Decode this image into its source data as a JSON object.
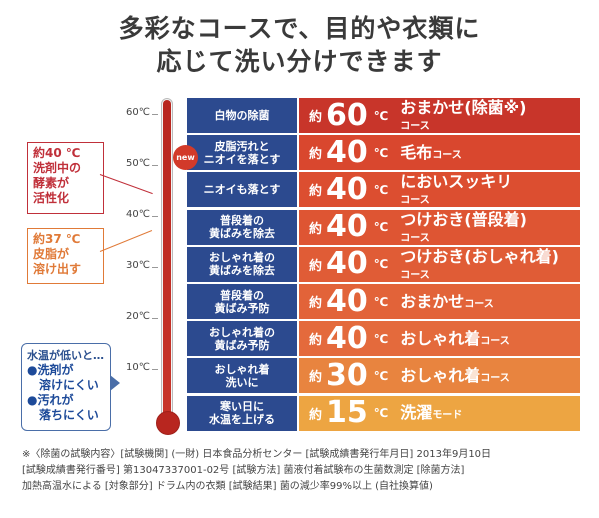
{
  "header": {
    "title_line1": "多彩なコースで、目的や衣類に",
    "title_line2": "応じて洗い分けできます"
  },
  "scale": {
    "ticks": [
      "60℃",
      "50℃",
      "40℃",
      "30℃",
      "20℃",
      "10℃"
    ]
  },
  "notes": {
    "enzyme": [
      "約40 ℃",
      "洗剤中の",
      "酵素が",
      "活性化"
    ],
    "sebum": [
      "約37 ℃",
      "皮脂が",
      "溶け出す"
    ],
    "low": {
      "heading": "水温が低いと…",
      "bullet1_a": "●洗剤が",
      "bullet1_b": "溶けにくい",
      "bullet2_a": "●汚れが",
      "bullet2_b": "落ちにくい"
    }
  },
  "badge": {
    "new": "new"
  },
  "rows": [
    {
      "purpose": "白物の除菌",
      "approx": "約",
      "temp": "60",
      "deg": "℃",
      "course": "おまかせ(除菌※)",
      "suffix": "コース",
      "stack": true,
      "color": "#c8352a"
    },
    {
      "purpose": "皮脂汚れと\nニオイを落とす",
      "approx": "約",
      "temp": "40",
      "deg": "℃",
      "course": "毛布",
      "suffix": "コース",
      "stack": false,
      "color": "#d9472e"
    },
    {
      "purpose": "ニオイも落とす",
      "approx": "約",
      "temp": "40",
      "deg": "℃",
      "course": "においスッキリ",
      "suffix": "コース",
      "stack": true,
      "color": "#dc4e30"
    },
    {
      "purpose": "普段着の\n黄ばみを除去",
      "approx": "約",
      "temp": "40",
      "deg": "℃",
      "course": "つけおき(普段着)",
      "suffix": "コース",
      "stack": true,
      "color": "#de5533"
    },
    {
      "purpose": "おしゃれ着の\n黄ばみを除去",
      "approx": "約",
      "temp": "40",
      "deg": "℃",
      "course": "つけおき(おしゃれ着)",
      "suffix": "コース",
      "stack": true,
      "color": "#e05c36"
    },
    {
      "purpose": "普段着の\n黄ばみ予防",
      "approx": "約",
      "temp": "40",
      "deg": "℃",
      "course": "おまかせ",
      "suffix": "コース",
      "stack": false,
      "color": "#e26339"
    },
    {
      "purpose": "おしゃれ着の\n黄ばみ予防",
      "approx": "約",
      "temp": "40",
      "deg": "℃",
      "course": "おしゃれ着",
      "suffix": "コース",
      "stack": false,
      "color": "#e46a3c"
    },
    {
      "purpose": "おしゃれ着\n洗いに",
      "approx": "約",
      "temp": "30",
      "deg": "℃",
      "course": "おしゃれ着",
      "suffix": "コース",
      "stack": false,
      "color": "#e8843f"
    },
    {
      "purpose": "寒い日に\n水温を上げる",
      "approx": "約",
      "temp": "15",
      "deg": "℃",
      "course": "洗濯",
      "suffix": "モード",
      "stack": false,
      "color": "#eda542"
    }
  ],
  "footnotes": [
    "※〈除菌の試験内容〉[試験機関] (一財) 日本食品分析センター [試験成績書発行年月日] 2013年9月10日",
    "[試験成績書発行番号] 第13047337001-02号 [試験方法] 菌液付着試験布の生菌数測定 [除菌方法]",
    "加熱高温水による [対象部分] ドラム内の衣類 [試験結果] 菌の減少率99%以上 (自社換算値)"
  ]
}
